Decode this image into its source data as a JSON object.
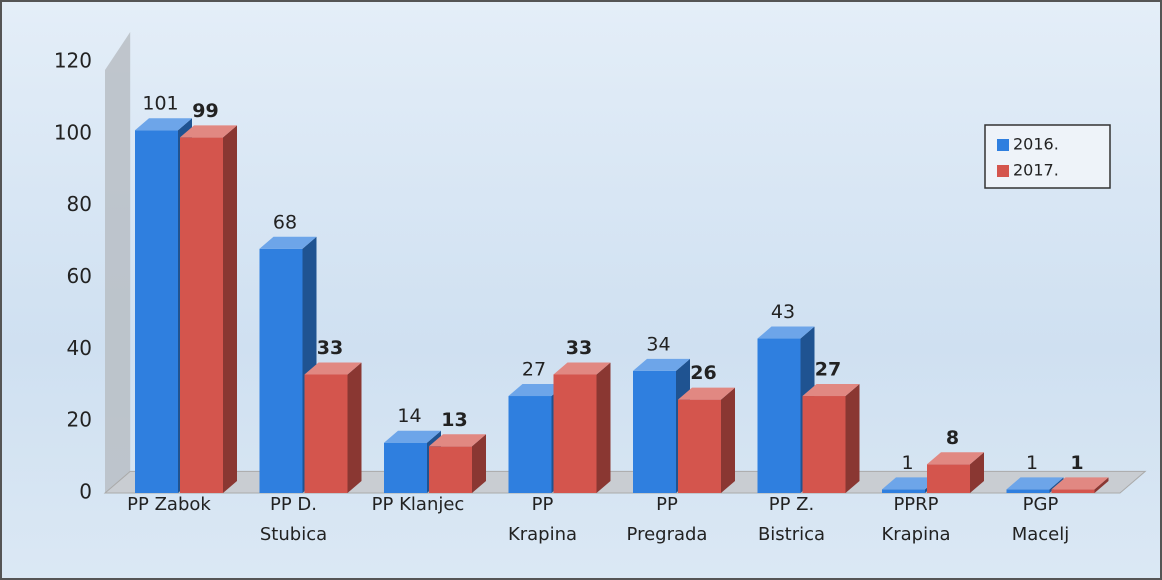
{
  "chart_data": {
    "type": "bar3d",
    "categories": [
      "PP Zabok",
      "PP D.\nStubica",
      "PP Klanjec",
      "PP\nKrapina",
      "PP\nPregrada",
      "PP Z.\nBistrica",
      "PPRP\nKrapina",
      "PGP\nMacelj"
    ],
    "series": [
      {
        "name": "2016.",
        "color": "#2f7fdf",
        "values": [
          101,
          68,
          14,
          27,
          34,
          43,
          1,
          1
        ]
      },
      {
        "name": "2017.",
        "color": "#d4554d",
        "values": [
          99,
          33,
          13,
          33,
          26,
          27,
          8,
          1
        ]
      }
    ],
    "ylim": [
      0,
      120
    ],
    "yticks": [
      0,
      20,
      40,
      60,
      80,
      100,
      120
    ],
    "grid": false,
    "legend": "top-right"
  }
}
